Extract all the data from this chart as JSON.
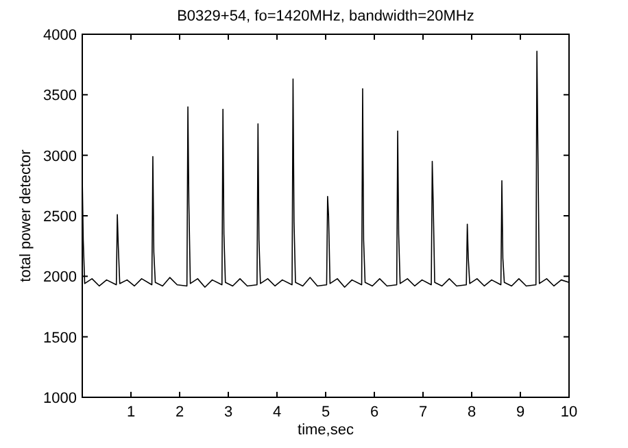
{
  "chart_data": {
    "type": "line",
    "title": "B0329+54, fo=1420MHz, bandwidth=20MHz",
    "xlabel": "time,sec",
    "ylabel": "total power detector",
    "x": [
      0,
      0.02,
      0.05,
      0.2,
      0.35,
      0.5,
      0.7,
      0.72,
      0.74,
      0.77,
      0.92,
      1.07,
      1.22,
      1.43,
      1.45,
      1.47,
      1.5,
      1.65,
      1.8,
      1.95,
      2.15,
      2.17,
      2.19,
      2.22,
      2.37,
      2.52,
      2.67,
      2.87,
      2.89,
      2.91,
      2.94,
      3.09,
      3.24,
      3.39,
      3.59,
      3.61,
      3.63,
      3.66,
      3.81,
      3.96,
      4.11,
      4.31,
      4.33,
      4.35,
      4.38,
      4.53,
      4.68,
      4.83,
      5.02,
      5.04,
      5.06,
      5.09,
      5.24,
      5.39,
      5.54,
      5.74,
      5.76,
      5.78,
      5.81,
      5.96,
      6.11,
      6.26,
      6.46,
      6.48,
      6.5,
      6.53,
      6.68,
      6.83,
      6.98,
      7.17,
      7.19,
      7.21,
      7.24,
      7.39,
      7.54,
      7.69,
      7.89,
      7.91,
      7.93,
      7.96,
      8.11,
      8.26,
      8.41,
      8.6,
      8.62,
      8.64,
      8.67,
      8.82,
      8.97,
      9.12,
      9.32,
      9.34,
      9.36,
      9.39,
      9.54,
      9.69,
      9.84,
      10
    ],
    "series": [
      {
        "color": "#000000",
        "values": [
          2820,
          2300,
          1940,
          1980,
          1920,
          1970,
          1930,
          2510,
          2250,
          1940,
          1970,
          1920,
          1980,
          1930,
          2990,
          2200,
          1950,
          1920,
          1990,
          1930,
          1920,
          3400,
          2600,
          1940,
          1980,
          1910,
          1970,
          1930,
          3380,
          2350,
          1950,
          1920,
          1980,
          1920,
          1930,
          3260,
          2300,
          1940,
          1980,
          1920,
          1970,
          1930,
          3630,
          2450,
          1950,
          1920,
          1990,
          1920,
          1930,
          2660,
          2500,
          1940,
          1980,
          1910,
          1970,
          1930,
          3550,
          2300,
          1950,
          1920,
          1980,
          1920,
          1930,
          3200,
          2350,
          1940,
          1980,
          1920,
          1970,
          1930,
          2950,
          2600,
          1950,
          1920,
          1980,
          1920,
          1930,
          2430,
          2150,
          1940,
          1980,
          1920,
          1970,
          1930,
          2790,
          2150,
          1950,
          1920,
          1980,
          1920,
          1930,
          3860,
          3050,
          1940,
          1980,
          1920,
          1970,
          1950
        ]
      }
    ],
    "xlim": [
      0,
      10
    ],
    "xticks": [
      1,
      2,
      3,
      4,
      5,
      6,
      7,
      8,
      9,
      10
    ],
    "ylim": [
      1000,
      4000
    ],
    "yticks": [
      1000,
      1500,
      2000,
      2500,
      3000,
      3500,
      4000
    ],
    "grid": false,
    "marker": "none",
    "line_style": "solid"
  }
}
